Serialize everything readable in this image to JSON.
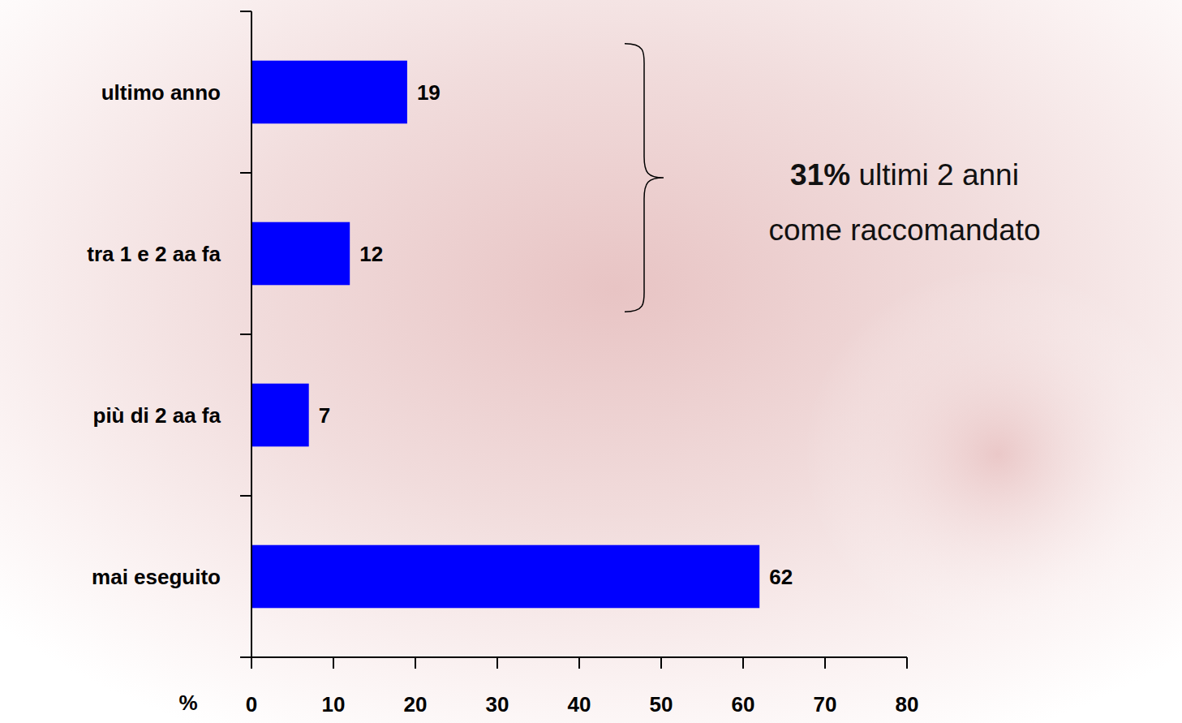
{
  "chart_data": {
    "type": "bar",
    "orientation": "horizontal",
    "categories": [
      "ultimo anno",
      "tra 1 e 2 aa fa",
      "più di 2 aa fa",
      "mai eseguito"
    ],
    "values": [
      19,
      12,
      7,
      62
    ],
    "color": "#0000ff",
    "xlim": [
      0,
      80
    ],
    "xticks": [
      0,
      10,
      20,
      30,
      40,
      50,
      60,
      70,
      80
    ],
    "xlabel": "%",
    "grid": false,
    "data_labels": true,
    "annotations": [
      {
        "lines": [
          "31% ultimi 2 anni",
          "come raccomandato"
        ]
      }
    ]
  }
}
